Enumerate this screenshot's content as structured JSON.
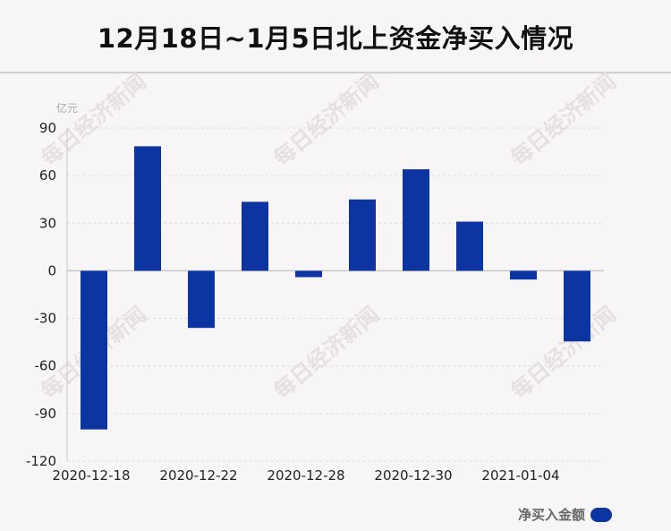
{
  "title": "12月18日~1月5日北上资金净买入情况",
  "watermark": "每日经济新闻",
  "colors": {
    "bar": "#0d35a2",
    "grid": "#dcdcdc",
    "axis": "#c8c8c8",
    "background": "#f8f5f6"
  },
  "legend": {
    "label": "净买入金额",
    "swatch_color": "#0d35a2",
    "position": "bottom-right"
  },
  "chart_data": {
    "type": "bar",
    "unit": "亿元",
    "ylabel": "亿元",
    "xlabel": "",
    "ylim": [
      -120,
      90
    ],
    "yticks": [
      90,
      60,
      30,
      0,
      -30,
      -60,
      -90,
      -120
    ],
    "grid": true,
    "categories": [
      "2020-12-18",
      "",
      "2020-12-22",
      "",
      "2020-12-28",
      "",
      "2020-12-30",
      "",
      "2021-01-04",
      ""
    ],
    "xtick_labels": [
      "2020-12-18",
      "2020-12-22",
      "2020-12-28",
      "2020-12-30",
      "2021-01-04"
    ],
    "series": [
      {
        "name": "净买入金额",
        "values": [
          -100,
          78.5,
          -36,
          43.5,
          -4,
          45,
          64,
          31,
          -5.5,
          -44.5
        ]
      }
    ]
  }
}
